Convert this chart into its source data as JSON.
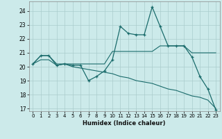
{
  "xlabel": "Humidex (Indice chaleur)",
  "bg_color": "#cceaea",
  "grid_color": "#aacccc",
  "line_color": "#1a6b6b",
  "xlim": [
    -0.5,
    23.5
  ],
  "ylim": [
    16.8,
    24.7
  ],
  "yticks": [
    17,
    18,
    19,
    20,
    21,
    22,
    23,
    24
  ],
  "xticks": [
    0,
    1,
    2,
    3,
    4,
    5,
    6,
    7,
    8,
    9,
    10,
    11,
    12,
    13,
    14,
    15,
    16,
    17,
    18,
    19,
    20,
    21,
    22,
    23
  ],
  "line1_x": [
    0,
    1,
    2,
    3,
    4,
    5,
    6,
    7,
    8,
    9,
    10,
    11,
    12,
    13,
    14,
    15,
    16,
    17,
    18,
    19,
    20,
    21,
    22,
    23
  ],
  "line1_y": [
    20.2,
    20.8,
    20.8,
    20.1,
    20.2,
    20.1,
    20.1,
    19.0,
    19.3,
    19.7,
    20.5,
    22.9,
    22.4,
    22.3,
    22.3,
    24.3,
    22.9,
    21.5,
    21.5,
    21.5,
    20.7,
    19.3,
    18.4,
    16.9
  ],
  "line2_x": [
    0,
    1,
    2,
    3,
    4,
    5,
    6,
    7,
    8,
    9,
    10,
    11,
    12,
    13,
    14,
    15,
    16,
    17,
    18,
    19,
    20,
    21,
    22,
    23
  ],
  "line2_y": [
    20.2,
    20.8,
    20.8,
    20.2,
    20.2,
    20.2,
    20.2,
    20.2,
    20.2,
    20.2,
    21.1,
    21.1,
    21.1,
    21.1,
    21.1,
    21.1,
    21.5,
    21.5,
    21.5,
    21.5,
    21.0,
    21.0,
    21.0,
    21.0
  ],
  "line3_x": [
    0,
    1,
    2,
    3,
    4,
    5,
    6,
    7,
    8,
    9,
    10,
    11,
    12,
    13,
    14,
    15,
    16,
    17,
    18,
    19,
    20,
    21,
    22,
    23
  ],
  "line3_y": [
    20.2,
    20.5,
    20.5,
    20.1,
    20.2,
    20.0,
    19.9,
    19.8,
    19.7,
    19.6,
    19.5,
    19.3,
    19.2,
    19.0,
    18.9,
    18.8,
    18.6,
    18.4,
    18.3,
    18.1,
    17.9,
    17.8,
    17.6,
    17.0
  ]
}
